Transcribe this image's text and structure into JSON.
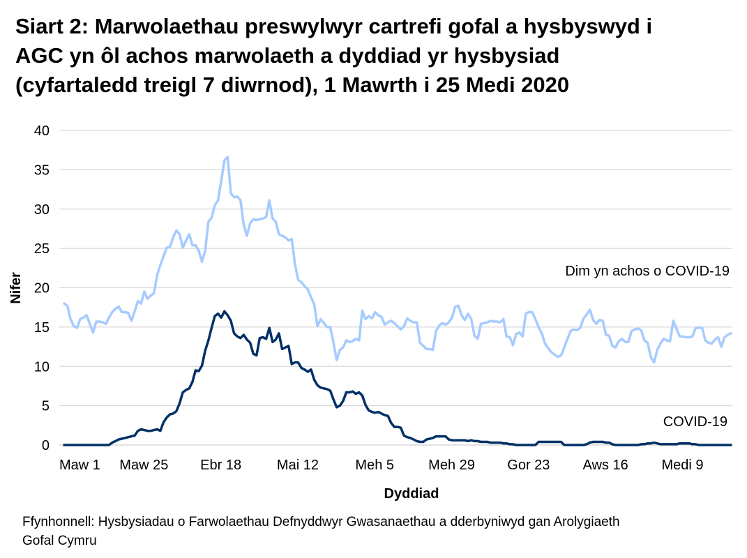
{
  "chart_data": {
    "type": "line",
    "title": [
      "Siart 2: Marwolaethau preswylwyr cartrefi gofal a hysbyswyd i",
      "AGC yn ôl achos marwolaeth a dyddiad yr hysbysiad",
      "(cyfartaledd treigl 7 diwrnod), 1 Mawrth i 25 Medi 2020"
    ],
    "xlabel": "Dyddiad",
    "ylabel": "Nifer",
    "x_start": "2020-03-01",
    "x_end": "2020-09-25",
    "x_step": "1 day",
    "xticks": [
      {
        "label": "Maw 1",
        "date": "2020-03-01"
      },
      {
        "label": "Maw 25",
        "date": "2020-03-25"
      },
      {
        "label": "Ebr 18",
        "date": "2020-04-18"
      },
      {
        "label": "Mai 12",
        "date": "2020-05-12"
      },
      {
        "label": "Meh 5",
        "date": "2020-06-05"
      },
      {
        "label": "Meh 29",
        "date": "2020-06-29"
      },
      {
        "label": "Gor 23",
        "date": "2020-07-23"
      },
      {
        "label": "Aws 16",
        "date": "2020-08-16"
      },
      {
        "label": "Medi 9",
        "date": "2020-09-09"
      }
    ],
    "yticks": [
      "0",
      "5",
      "10",
      "15",
      "20",
      "25",
      "30",
      "35",
      "40"
    ],
    "ylim": [
      0,
      40
    ],
    "grid": "horizontal",
    "series": [
      {
        "name": "Dim yn achos o COVID-19",
        "color": "#a6cbff",
        "values": [
          18.0,
          17.7,
          16.0,
          15.1,
          14.9,
          16.0,
          16.2,
          16.5,
          15.4,
          14.3,
          15.7,
          15.7,
          15.6,
          15.4,
          16.2,
          16.9,
          17.3,
          17.6,
          16.9,
          16.9,
          16.8,
          15.8,
          17.0,
          18.3,
          18.0,
          19.5,
          18.6,
          19.0,
          19.3,
          21.6,
          22.9,
          24.0,
          25.1,
          25.2,
          26.4,
          27.3,
          26.8,
          25.1,
          26.0,
          26.8,
          25.4,
          25.4,
          24.7,
          23.3,
          24.7,
          28.4,
          28.9,
          30.5,
          31.1,
          33.6,
          36.2,
          36.6,
          32.0,
          31.5,
          31.6,
          31.1,
          28.0,
          26.6,
          28.2,
          28.7,
          28.6,
          28.7,
          28.8,
          29.0,
          31.1,
          28.8,
          28.4,
          26.8,
          26.6,
          26.4,
          26.0,
          26.2,
          23.0,
          21.0,
          20.7,
          20.2,
          19.8,
          18.8,
          17.9,
          15.1,
          16.0,
          15.5,
          15.0,
          15.0,
          13.0,
          10.8,
          12.1,
          12.4,
          13.3,
          13.1,
          13.2,
          13.5,
          13.3,
          17.1,
          16.0,
          16.4,
          16.1,
          16.9,
          16.5,
          16.3,
          15.3,
          15.6,
          15.8,
          15.5,
          15.1,
          14.7,
          15.1,
          16.1,
          15.8,
          15.6,
          15.6,
          13.0,
          12.6,
          12.2,
          12.2,
          12.1,
          14.5,
          15.2,
          15.5,
          15.3,
          15.6,
          16.2,
          17.6,
          17.7,
          16.5,
          15.9,
          16.7,
          16.0,
          13.9,
          13.5,
          15.4,
          15.5,
          15.6,
          15.8,
          15.7,
          15.7,
          15.6,
          16.0,
          13.8,
          13.7,
          12.7,
          14.1,
          14.3,
          13.8,
          16.7,
          16.9,
          16.9,
          16.0,
          15.0,
          14.2,
          12.9,
          12.3,
          11.8,
          11.5,
          11.2,
          11.4,
          12.4,
          13.5,
          14.5,
          14.7,
          14.6,
          14.9,
          16.1,
          16.6,
          17.2,
          15.9,
          15.4,
          15.9,
          15.8,
          14.0,
          13.9,
          12.6,
          12.4,
          13.2,
          13.5,
          13.1,
          13.1,
          14.5,
          14.7,
          14.8,
          14.6,
          13.3,
          13.0,
          11.2,
          10.5,
          12.1,
          12.9,
          13.5,
          13.3,
          13.2,
          15.8,
          14.8,
          13.8,
          13.8,
          13.7,
          13.7,
          13.8,
          14.9,
          14.9,
          14.9,
          13.3,
          13.0,
          12.9,
          13.4,
          13.7,
          12.5,
          13.7,
          14.0,
          14.2
        ]
      },
      {
        "name": "COVID-19",
        "color": "#003066",
        "values": [
          0,
          0,
          0,
          0,
          0,
          0,
          0,
          0,
          0,
          0,
          0,
          0,
          0,
          0,
          0,
          0.3,
          0.5,
          0.7,
          0.8,
          0.9,
          1.0,
          1.1,
          1.2,
          1.8,
          2.0,
          1.9,
          1.8,
          1.8,
          1.9,
          2.0,
          1.8,
          2.9,
          3.5,
          3.9,
          4.0,
          4.3,
          5.3,
          6.7,
          7.0,
          7.2,
          8.0,
          9.5,
          9.4,
          10.1,
          12.0,
          13.3,
          14.9,
          16.4,
          16.7,
          16.2,
          17.0,
          16.5,
          15.8,
          14.2,
          13.8,
          13.6,
          14.0,
          13.4,
          13.0,
          11.6,
          11.4,
          13.6,
          13.7,
          13.5,
          14.9,
          13.1,
          13.4,
          14.2,
          12.2,
          12.4,
          12.6,
          10.3,
          10.5,
          10.5,
          9.8,
          9.6,
          9.3,
          9.6,
          8.3,
          7.6,
          7.3,
          7.2,
          7.1,
          6.9,
          5.8,
          4.8,
          5.0,
          5.6,
          6.7,
          6.7,
          6.8,
          6.5,
          6.7,
          6.3,
          5.1,
          4.4,
          4.2,
          4.1,
          4.2,
          4.0,
          3.8,
          3.7,
          2.8,
          2.3,
          2.3,
          2.2,
          1.2,
          1.0,
          0.9,
          0.7,
          0.5,
          0.4,
          0.4,
          0.7,
          0.8,
          0.9,
          1.1,
          1.1,
          1.1,
          1.1,
          0.7,
          0.6,
          0.6,
          0.6,
          0.6,
          0.6,
          0.5,
          0.6,
          0.5,
          0.5,
          0.4,
          0.4,
          0.4,
          0.3,
          0.3,
          0.3,
          0.3,
          0.2,
          0.2,
          0.1,
          0.1,
          0,
          0,
          0,
          0,
          0,
          0,
          0,
          0.4,
          0.4,
          0.4,
          0.4,
          0.4,
          0.4,
          0.4,
          0.4,
          0,
          0,
          0,
          0,
          0,
          0,
          0,
          0.1,
          0.3,
          0.4,
          0.4,
          0.4,
          0.4,
          0.3,
          0.3,
          0.1,
          0,
          0,
          0,
          0,
          0,
          0,
          0,
          0,
          0.1,
          0.1,
          0.2,
          0.2,
          0.3,
          0.2,
          0.1,
          0.1,
          0.1,
          0.1,
          0.1,
          0.1,
          0.2,
          0.2,
          0.2,
          0.2,
          0.1,
          0.1,
          0,
          0,
          0,
          0,
          0,
          0,
          0,
          0,
          0,
          0,
          0
        ]
      }
    ]
  },
  "source": [
    "Ffynhonnell: Hysbysiadau o Farwolaethau Defnyddwyr Gwasanaethau a dderbyniwyd gan Arolygiaeth",
    "Gofal Cymru"
  ]
}
